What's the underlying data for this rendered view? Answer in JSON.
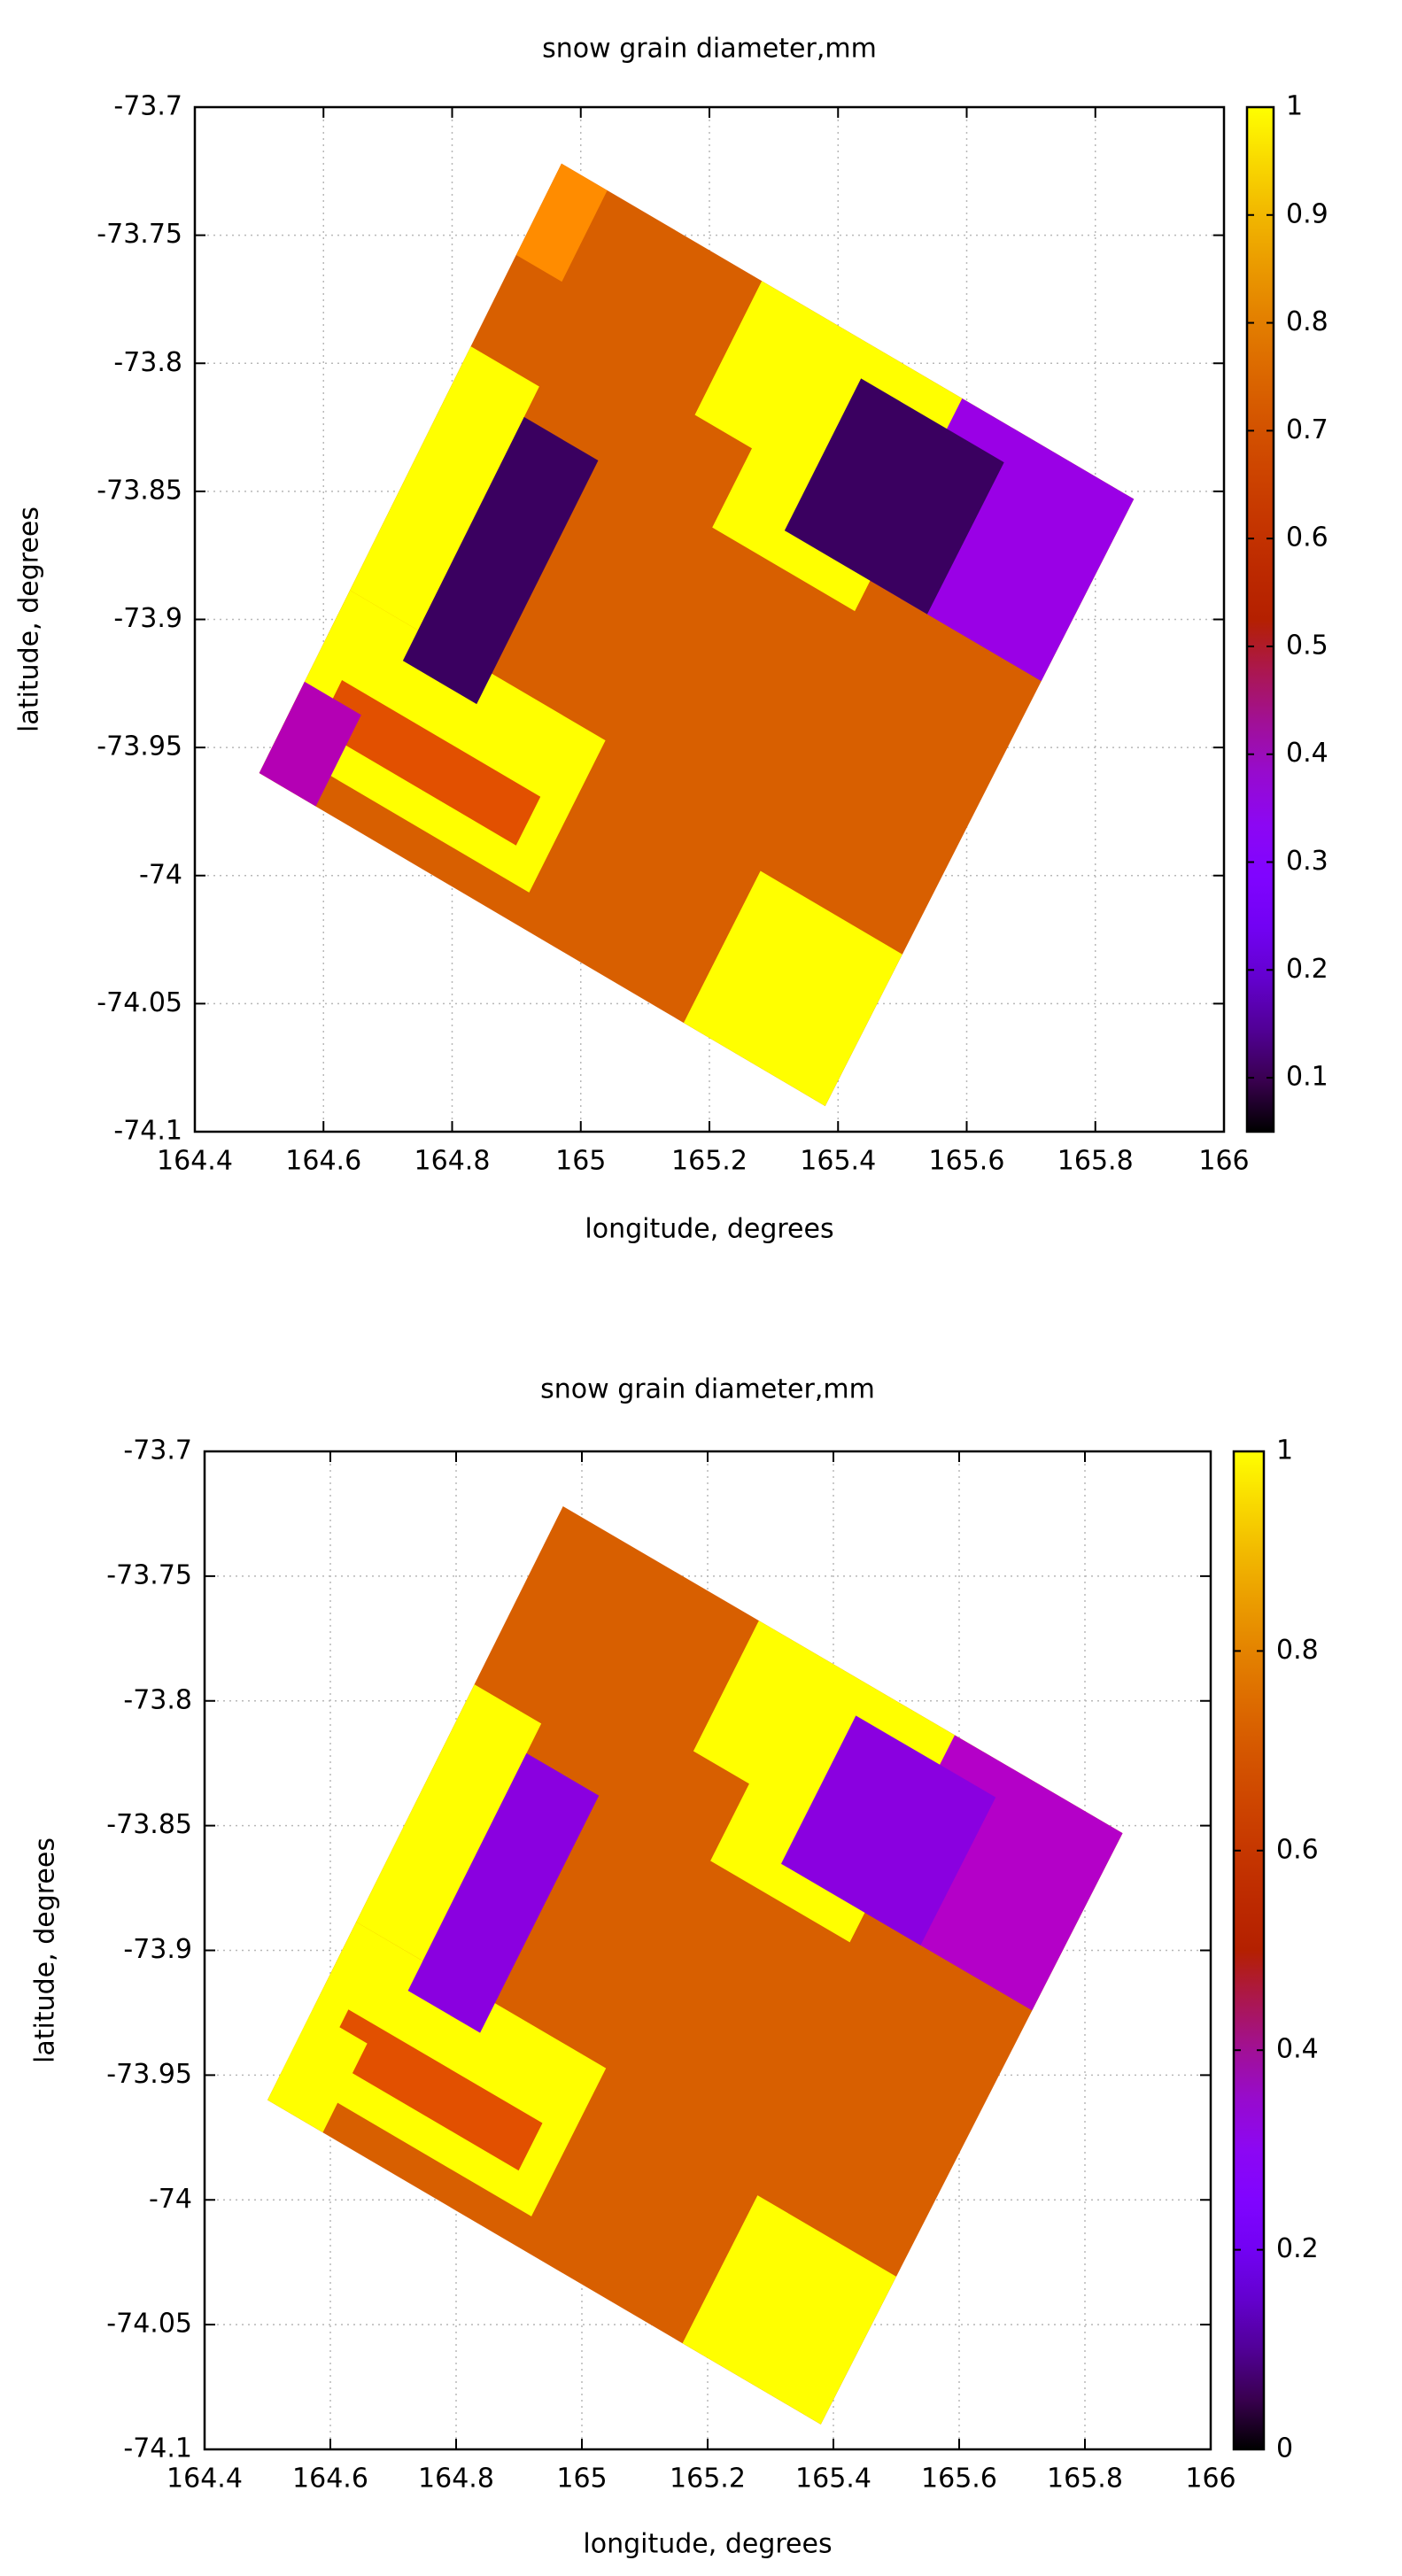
{
  "chart_data": [
    {
      "type": "heatmap",
      "title": "snow grain diameter,mm",
      "xlabel": "longitude, degrees",
      "ylabel": "latitude, degrees",
      "xlim": [
        164.4,
        166
      ],
      "xticks": [
        164.4,
        164.6,
        164.8,
        165,
        165.2,
        165.4,
        165.6,
        165.8,
        166
      ],
      "ylim": [
        -74.1,
        -73.7
      ],
      "yticks": [
        -74.1,
        -74.05,
        -74,
        -73.95,
        -73.9,
        -73.85,
        -73.8,
        -73.75,
        -73.7
      ],
      "clim": [
        0.05,
        1
      ],
      "cticks": [
        0.1,
        0.2,
        0.3,
        0.4,
        0.5,
        0.6,
        0.7,
        0.8,
        0.9,
        1
      ],
      "palette": "gnuplot",
      "grid": true,
      "footprint": {
        "lon": [
          164.97,
          165.86,
          165.38,
          164.5
        ],
        "lat": [
          -73.722,
          -73.853,
          -74.09,
          -73.96
        ]
      }
    },
    {
      "type": "heatmap",
      "title": "snow grain diameter,mm",
      "xlabel": "longitude, degrees",
      "ylabel": "latitude, degrees",
      "xlim": [
        164.4,
        166
      ],
      "xticks": [
        164.4,
        164.6,
        164.8,
        165,
        165.2,
        165.4,
        165.6,
        165.8,
        166
      ],
      "ylim": [
        -74.1,
        -73.7
      ],
      "yticks": [
        -74.1,
        -74.05,
        -74,
        -73.95,
        -73.9,
        -73.85,
        -73.8,
        -73.75,
        -73.7
      ],
      "clim": [
        0,
        1
      ],
      "cticks": [
        0,
        0.2,
        0.4,
        0.6,
        0.8,
        1
      ],
      "palette": "gnuplot",
      "grid": true,
      "footprint": {
        "lon": [
          164.97,
          165.86,
          165.38,
          164.5
        ],
        "lat": [
          -73.722,
          -73.853,
          -74.09,
          -73.96
        ]
      }
    }
  ]
}
